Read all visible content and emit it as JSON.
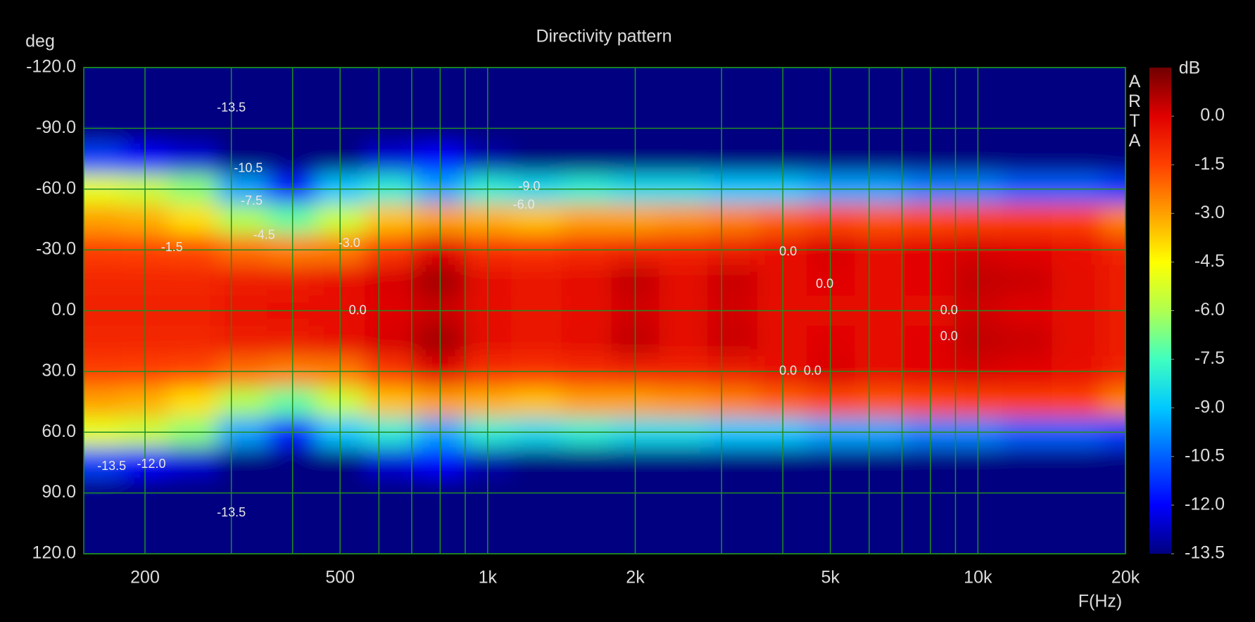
{
  "chart_data": {
    "type": "heatmap",
    "title": "Directivity pattern",
    "xlabel": "F(Hz)",
    "ylabel": "deg",
    "colorbar_label": "dB",
    "watermark": "ARTA",
    "xscale": "log",
    "xlim": [
      150,
      20000
    ],
    "xticks": [
      200,
      500,
      {
        "value": 1000,
        "label": "1k"
      },
      {
        "value": 2000,
        "label": "2k"
      },
      {
        "value": 5000,
        "label": "5k"
      },
      {
        "value": 10000,
        "label": "10k"
      },
      {
        "value": 20000,
        "label": "20k"
      }
    ],
    "xminor_ticks": [
      300,
      400,
      600,
      700,
      800,
      900,
      3000,
      4000,
      6000,
      7000,
      8000,
      9000
    ],
    "ylim": [
      -120,
      120
    ],
    "yticks": [
      {
        "value": -120,
        "label": "-120.0"
      },
      {
        "value": -90,
        "label": "-90.0"
      },
      {
        "value": -60,
        "label": "-60.0"
      },
      {
        "value": -30,
        "label": "-30.0"
      },
      {
        "value": 0,
        "label": "0.0"
      },
      {
        "value": 30,
        "label": "30.0"
      },
      {
        "value": 60,
        "label": "60.0"
      },
      {
        "value": 90,
        "label": "90.0"
      },
      {
        "value": 120,
        "label": "120.0"
      }
    ],
    "zlim": [
      -13.5,
      1.5
    ],
    "zticks": [
      {
        "value": 0,
        "label": "0.0"
      },
      {
        "value": -1.5,
        "label": "-1.5"
      },
      {
        "value": -3,
        "label": "-3.0"
      },
      {
        "value": -4.5,
        "label": "-4.5"
      },
      {
        "value": -6,
        "label": "-6.0"
      },
      {
        "value": -7.5,
        "label": "-7.5"
      },
      {
        "value": -9,
        "label": "-9.0"
      },
      {
        "value": -10.5,
        "label": "-10.5"
      },
      {
        "value": -12,
        "label": "-12.0"
      },
      {
        "value": -13.5,
        "label": "-13.5"
      }
    ],
    "grid": true,
    "grid_color": "#1f8f1f",
    "colormap": [
      "#000080",
      "#0000ff",
      "#0060ff",
      "#00c8ff",
      "#40ffc0",
      "#b0ff50",
      "#ffff00",
      "#ffa000",
      "#ff4000",
      "#e00000",
      "#700000"
    ],
    "x": [
      160,
      200,
      250,
      315,
      400,
      500,
      630,
      800,
      1000,
      1250,
      1600,
      2000,
      2500,
      3150,
      4000,
      5000,
      6300,
      8000,
      10000,
      12500,
      16000,
      20000
    ],
    "y": [
      -120,
      -105,
      -90,
      -75,
      -60,
      -45,
      -30,
      -15,
      0,
      15,
      30,
      45,
      60,
      75,
      90,
      105,
      120
    ],
    "z": [
      [
        -16,
        -16,
        -16,
        -16,
        -16,
        -16,
        -16,
        -16,
        -16,
        -16,
        -16,
        -16,
        -16,
        -16,
        -16,
        -16,
        -16,
        -16,
        -16,
        -16,
        -16,
        -16
      ],
      [
        -13.8,
        -13.8,
        -13.8,
        -16,
        -16,
        -16,
        -16,
        -16,
        -16,
        -16,
        -16,
        -16,
        -16,
        -16,
        -16,
        -16,
        -16,
        -16,
        -16,
        -16,
        -16,
        -16
      ],
      [
        -14.5,
        -14.5,
        -14.5,
        -15,
        -15,
        -15,
        -15,
        -15,
        -15,
        -15,
        -15,
        -15,
        -15,
        -15,
        -15,
        -15,
        -15,
        -15,
        -15,
        -15,
        -15,
        -15
      ],
      [
        -11,
        -12,
        -12.5,
        -13.5,
        -14,
        -13.5,
        -12.5,
        -12,
        -13,
        -13.5,
        -14,
        -14,
        -14,
        -14,
        -14.5,
        -14.5,
        -14.5,
        -15,
        -15,
        -15,
        -15,
        -15
      ],
      [
        -5,
        -5.5,
        -6.5,
        -9.5,
        -11.5,
        -9,
        -8,
        -9.5,
        -8,
        -8.5,
        -8,
        -8.5,
        -8.5,
        -9,
        -9,
        -9.5,
        -9.5,
        -10,
        -10,
        -10.5,
        -10.5,
        -11
      ],
      [
        -3,
        -3.2,
        -4,
        -6,
        -7,
        -5.5,
        -3.5,
        -3,
        -3.2,
        -3.5,
        -3,
        -3,
        -2.8,
        -2.5,
        -2,
        -1.6,
        -1.8,
        -1.6,
        -1.5,
        -1.4,
        -1.5,
        -2.5
      ],
      [
        -1.4,
        -1.5,
        -1.6,
        -2.2,
        -2.5,
        -2.4,
        -1.3,
        -0.1,
        -1.1,
        -1.2,
        -1,
        -0.8,
        -0.8,
        -0.6,
        -0.4,
        0.1,
        -0.3,
        -0.1,
        0.1,
        -0.1,
        -0.4,
        -0.8
      ],
      [
        -0.9,
        -0.9,
        -0.9,
        -0.7,
        -0.6,
        -0.4,
        0.1,
        0.8,
        -0.2,
        -0.5,
        -0.2,
        0.4,
        -0.2,
        0.3,
        -0.2,
        0,
        -0.3,
        -0.1,
        0.4,
        0.3,
        -0.2,
        -0.6
      ],
      [
        -0.8,
        -0.8,
        -0.8,
        -0.5,
        -0.4,
        -0.3,
        0,
        0.3,
        -0.3,
        -0.5,
        -0.3,
        0.2,
        -0.2,
        0.2,
        -0.3,
        -0.2,
        -0.3,
        -0.2,
        0.2,
        0,
        -0.2,
        -0.6
      ],
      [
        -0.9,
        -0.9,
        -0.9,
        -0.7,
        -0.6,
        -0.4,
        0.1,
        0.8,
        -0.2,
        -0.5,
        -0.2,
        0.4,
        -0.2,
        0.3,
        -0.2,
        0,
        -0.3,
        -0.1,
        0.4,
        0.3,
        -0.2,
        -0.6
      ],
      [
        -1.4,
        -1.5,
        -1.6,
        -2.2,
        -2.5,
        -2.4,
        -1.3,
        -0.1,
        -1.1,
        -1.2,
        -1,
        -0.8,
        -0.8,
        -0.6,
        -0.4,
        0.1,
        -0.3,
        -0.1,
        0.1,
        -0.1,
        -0.4,
        -0.8
      ],
      [
        -3,
        -3.2,
        -4,
        -6,
        -7,
        -5.5,
        -3.5,
        -3,
        -3.2,
        -3.5,
        -3,
        -3,
        -2.8,
        -2.5,
        -2,
        -1.6,
        -1.8,
        -1.6,
        -1.5,
        -1.4,
        -1.5,
        -2.5
      ],
      [
        -5,
        -5.5,
        -6.5,
        -9.5,
        -11.5,
        -9,
        -8,
        -9.5,
        -8,
        -8.5,
        -8,
        -8.5,
        -8.5,
        -9,
        -9,
        -9.5,
        -9.5,
        -10,
        -10,
        -10.5,
        -10.5,
        -11
      ],
      [
        -11,
        -12,
        -12.5,
        -13.5,
        -14,
        -13.5,
        -12.5,
        -12,
        -13,
        -13.5,
        -14,
        -14,
        -14,
        -14,
        -14.5,
        -14.5,
        -14.5,
        -15,
        -15,
        -15,
        -15,
        -15
      ],
      [
        -14.5,
        -14.5,
        -14.5,
        -15,
        -15,
        -15,
        -15,
        -15,
        -15,
        -15,
        -15,
        -15,
        -15,
        -15,
        -15,
        -15,
        -15,
        -15,
        -15,
        -15,
        -15,
        -15
      ],
      [
        -13.8,
        -13.8,
        -13.8,
        -16,
        -16,
        -16,
        -16,
        -16,
        -16,
        -16,
        -16,
        -16,
        -16,
        -16,
        -16,
        -16,
        -16,
        -16,
        -16,
        -16,
        -16,
        -16
      ],
      [
        -16,
        -16,
        -16,
        -16,
        -16,
        -16,
        -16,
        -16,
        -16,
        -16,
        -16,
        -16,
        -16,
        -16,
        -16,
        -16,
        -16,
        -16,
        -16,
        -16,
        -16,
        -16
      ]
    ],
    "annotations": [
      {
        "text": "-13.5",
        "x": 300,
        "y": -100
      },
      {
        "text": "-10.5",
        "x": 325,
        "y": -70
      },
      {
        "text": "-7.5",
        "x": 330,
        "y": -54
      },
      {
        "text": "-4.5",
        "x": 350,
        "y": -37
      },
      {
        "text": "-1.5",
        "x": 227,
        "y": -31
      },
      {
        "text": "-3.0",
        "x": 522,
        "y": -33
      },
      {
        "text": "-9.0",
        "x": 1216,
        "y": -61
      },
      {
        "text": "-6.0",
        "x": 1185,
        "y": -52
      },
      {
        "text": "0.0",
        "x": 543,
        "y": 0
      },
      {
        "text": "0.0",
        "x": 4100,
        "y": -29
      },
      {
        "text": "0.0",
        "x": 4870,
        "y": -13
      },
      {
        "text": "0.0",
        "x": 8730,
        "y": 0
      },
      {
        "text": "0.0",
        "x": 8730,
        "y": 13
      },
      {
        "text": "0.0",
        "x": 4100,
        "y": 30
      },
      {
        "text": "0.0",
        "x": 4600,
        "y": 30
      },
      {
        "text": "-13.5",
        "x": 171,
        "y": 77
      },
      {
        "text": "-12.0",
        "x": 206,
        "y": 76
      },
      {
        "text": "-13.5",
        "x": 300,
        "y": 100
      }
    ]
  }
}
